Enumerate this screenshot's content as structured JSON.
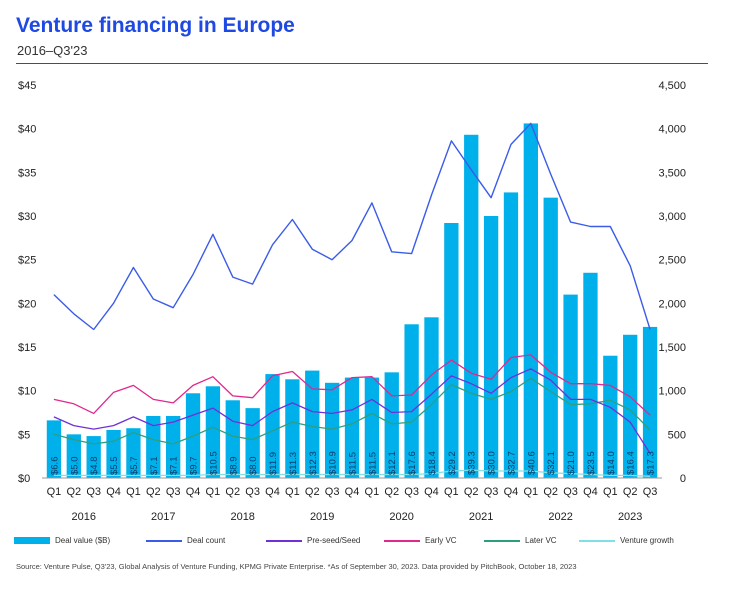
{
  "header": {
    "title": "Venture financing in Europe",
    "subtitle": "2016–Q3'23"
  },
  "chart_data": {
    "type": "bar",
    "categories": [
      "Q1",
      "Q2",
      "Q3",
      "Q4",
      "Q1",
      "Q2",
      "Q3",
      "Q4",
      "Q1",
      "Q2",
      "Q3",
      "Q4",
      "Q1",
      "Q2",
      "Q3",
      "Q4",
      "Q1",
      "Q2",
      "Q3",
      "Q4",
      "Q1",
      "Q2",
      "Q3",
      "Q4",
      "Q1",
      "Q2",
      "Q3",
      "Q4",
      "Q1",
      "Q2",
      "Q3"
    ],
    "years": [
      {
        "label": "2016",
        "start": 0,
        "end": 3
      },
      {
        "label": "2017",
        "start": 4,
        "end": 7
      },
      {
        "label": "2018",
        "start": 8,
        "end": 11
      },
      {
        "label": "2019",
        "start": 12,
        "end": 15
      },
      {
        "label": "2020",
        "start": 16,
        "end": 19
      },
      {
        "label": "2021",
        "start": 20,
        "end": 23
      },
      {
        "label": "2022",
        "start": 24,
        "end": 27
      },
      {
        "label": "2023",
        "start": 28,
        "end": 30
      }
    ],
    "left_axis": {
      "ylim": [
        0,
        45
      ],
      "ticks": [
        0,
        5,
        10,
        15,
        20,
        25,
        30,
        35,
        40,
        45
      ],
      "tick_labels": [
        "$0",
        "$5",
        "$10",
        "$15",
        "$20",
        "$25",
        "$30",
        "$35",
        "$40",
        "$45"
      ]
    },
    "right_axis": {
      "ylim": [
        0,
        4500
      ],
      "ticks": [
        0,
        500,
        1000,
        1500,
        2000,
        2500,
        3000,
        3500,
        4000,
        4500
      ],
      "tick_labels": [
        "0",
        "500",
        "1,000",
        "1,500",
        "2,000",
        "2,500",
        "3,000",
        "3,500",
        "4,000",
        "4,500"
      ]
    },
    "bars": {
      "name": "Deal value ($B)",
      "color": "#00b0ea",
      "values": [
        6.6,
        5.0,
        4.8,
        5.5,
        5.7,
        7.1,
        7.1,
        9.7,
        10.5,
        8.9,
        8.0,
        11.9,
        11.3,
        12.3,
        10.9,
        11.5,
        11.5,
        12.1,
        17.6,
        18.4,
        29.2,
        39.3,
        30.0,
        32.7,
        40.6,
        32.1,
        21.0,
        23.5,
        14.0,
        16.4,
        17.3
      ],
      "labels": [
        "$6.6",
        "$5.0",
        "$4.8",
        "$5.5",
        "$5.7",
        "$7.1",
        "$7.1",
        "$9.7",
        "$10.5",
        "$8.9",
        "$8.0",
        "$11.9",
        "$11.3",
        "$12.3",
        "$10.9",
        "$11.5",
        "$11.5",
        "$12.1",
        "$17.6",
        "$18.4",
        "$29.2",
        "$39.3",
        "$30.0",
        "$32.7",
        "$40.6",
        "$32.1",
        "$21.0",
        "$23.5",
        "$14.0",
        "$16.4",
        "$17.3"
      ]
    },
    "lines": [
      {
        "name": "Deal count",
        "color": "#3b5ce8",
        "values": [
          2100,
          1880,
          1700,
          2000,
          2410,
          2050,
          1950,
          2330,
          2790,
          2300,
          2220,
          2670,
          2960,
          2620,
          2500,
          2720,
          3150,
          2590,
          2570,
          3240,
          3860,
          3530,
          3210,
          3820,
          4060,
          3480,
          2930,
          2880,
          2880,
          2430,
          1700
        ]
      },
      {
        "name": "Pre-seed/Seed",
        "color": "#7030d8",
        "values": [
          700,
          600,
          560,
          600,
          700,
          600,
          640,
          720,
          800,
          650,
          600,
          760,
          860,
          760,
          740,
          780,
          900,
          750,
          760,
          960,
          1170,
          1080,
          970,
          1150,
          1250,
          1120,
          900,
          900,
          810,
          640,
          280
        ]
      },
      {
        "name": "Early VC",
        "color": "#e0288f",
        "values": [
          900,
          850,
          740,
          980,
          1060,
          900,
          860,
          1060,
          1160,
          940,
          920,
          1170,
          1220,
          1020,
          1010,
          1150,
          1160,
          940,
          950,
          1180,
          1350,
          1200,
          1130,
          1380,
          1410,
          1210,
          1080,
          1080,
          1060,
          930,
          720
        ]
      },
      {
        "name": "Later VC",
        "color": "#2e9e7e",
        "values": [
          500,
          440,
          390,
          420,
          520,
          440,
          390,
          480,
          580,
          480,
          440,
          540,
          640,
          590,
          560,
          620,
          740,
          620,
          640,
          840,
          1070,
          970,
          900,
          990,
          1140,
          990,
          840,
          850,
          890,
          780,
          550
        ]
      },
      {
        "name": "Venture growth",
        "color": "#7fe0e6",
        "values": [
          30,
          30,
          30,
          30,
          30,
          30,
          30,
          30,
          40,
          40,
          40,
          40,
          40,
          40,
          40,
          40,
          40,
          40,
          40,
          50,
          80,
          90,
          80,
          80,
          80,
          60,
          50,
          40,
          30,
          30,
          20
        ]
      }
    ]
  },
  "legend": {
    "deal_value": "Deal value ($B)",
    "deal_count": "Deal count",
    "preseed": "Pre-seed/Seed",
    "early_vc": "Early VC",
    "later_vc": "Later VC",
    "venture_growth": "Venture growth"
  },
  "footer": {
    "source": "Source: Venture Pulse, Q3'23, Global Analysis of Venture Funding, KPMG Private Enterprise. *As of September 30, 2023. Data provided by PitchBook, October 18, 2023"
  }
}
